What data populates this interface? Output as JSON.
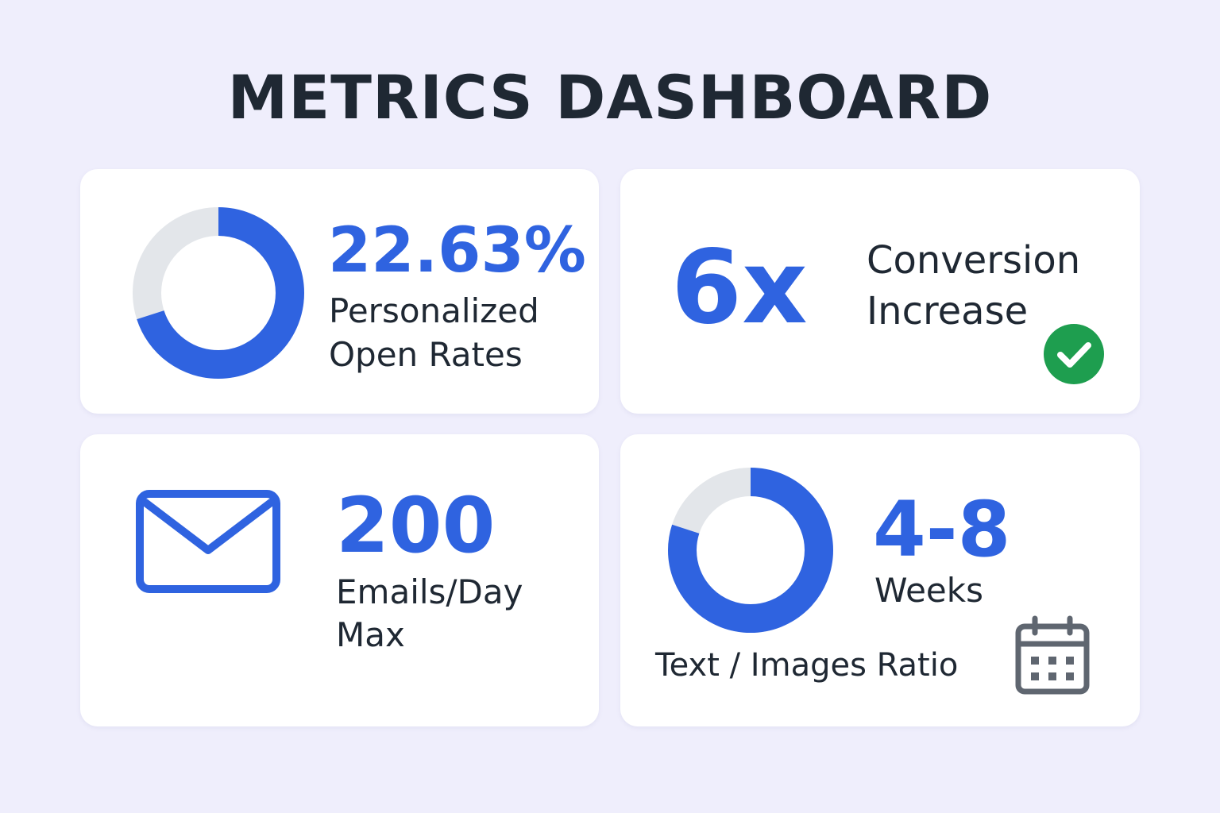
{
  "header": {
    "title": "METRICS DASHBOARD"
  },
  "colors": {
    "accent": "#2f63e0",
    "ring_track": "#e3e6ea",
    "text": "#1f2833",
    "success": "#1e9e4f",
    "icon_gray": "#5f6670",
    "background": "#efeefc"
  },
  "cards": [
    {
      "value": "22.63%",
      "label_line1": "Personalized",
      "label_line2": "Open Rates",
      "ring_fill_fraction": 0.7,
      "icon": "donut-chart"
    },
    {
      "value": "6x",
      "label_line1": "Conversion",
      "label_line2": "Increase",
      "icon": "check-circle-icon"
    },
    {
      "value": "200",
      "label_line1": "Emails/Day",
      "label_line2": "Max",
      "icon": "envelope-icon"
    },
    {
      "value": "4-8",
      "label_line1": "Weeks",
      "caption": "Text / Images Ratio",
      "ring_fill_fraction": 0.8,
      "icon": "calendar-icon"
    }
  ]
}
